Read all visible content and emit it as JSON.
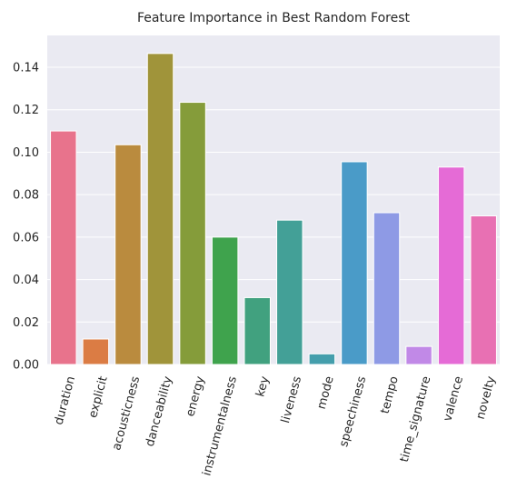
{
  "chart_data": {
    "type": "bar",
    "title": "Feature Importance in Best Random Forest",
    "xlabel": "",
    "ylabel": "",
    "ylim": [
      0,
      0.155
    ],
    "yticks": [
      "0.00",
      "0.02",
      "0.04",
      "0.06",
      "0.08",
      "0.10",
      "0.12",
      "0.14"
    ],
    "grid": true,
    "categories": [
      "duration",
      "explicit",
      "acousticness",
      "danceability",
      "energy",
      "instrumentalness",
      "key",
      "liveness",
      "mode",
      "speechiness",
      "tempo",
      "time_signature",
      "valence",
      "novelty"
    ],
    "values": [
      0.11,
      0.012,
      0.1035,
      0.1465,
      0.1235,
      0.06,
      0.0315,
      0.068,
      0.005,
      0.0955,
      0.0715,
      0.0085,
      0.093,
      0.07
    ],
    "colors": [
      "#e8738c",
      "#db7c44",
      "#ba8b3e",
      "#a0943a",
      "#859c3a",
      "#3fa34d",
      "#41a17f",
      "#43a097",
      "#449eac",
      "#4a9bc8",
      "#8e9ae5",
      "#c189e7",
      "#e56bd6",
      "#e870b3"
    ]
  }
}
